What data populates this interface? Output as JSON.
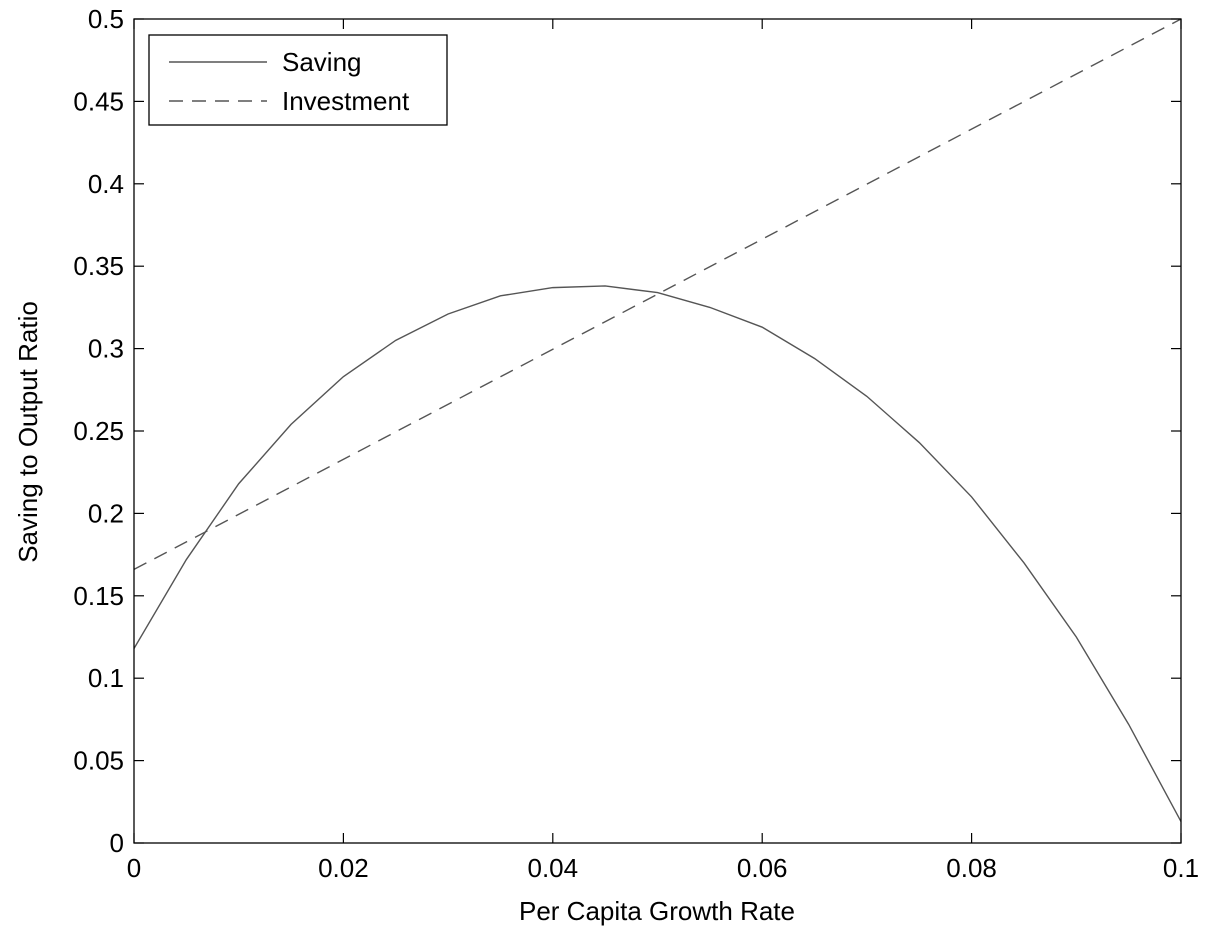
{
  "chart_data": {
    "type": "line",
    "xlabel": "Per Capita Growth Rate",
    "ylabel": "Saving to Output Ratio",
    "xlim": [
      0,
      0.1
    ],
    "ylim": [
      0,
      0.5
    ],
    "x_ticks": [
      "0",
      "0.02",
      "0.04",
      "0.06",
      "0.08",
      "0.1"
    ],
    "y_ticks": [
      "0",
      "0.05",
      "0.1",
      "0.15",
      "0.2",
      "0.25",
      "0.3",
      "0.35",
      "0.4",
      "0.45",
      "0.5"
    ],
    "x_tick_values": [
      0,
      0.02,
      0.04,
      0.06,
      0.08,
      0.1
    ],
    "y_tick_values": [
      0,
      0.05,
      0.1,
      0.15,
      0.2,
      0.25,
      0.3,
      0.35,
      0.4,
      0.45,
      0.5
    ],
    "grid": false,
    "legend_position": "top-left",
    "series": [
      {
        "name": "Saving",
        "style": "solid",
        "color": "#555555",
        "x": [
          0,
          0.005,
          0.01,
          0.015,
          0.02,
          0.025,
          0.03,
          0.035,
          0.04,
          0.045,
          0.05,
          0.055,
          0.06,
          0.065,
          0.07,
          0.075,
          0.08,
          0.085,
          0.09,
          0.095,
          0.1
        ],
        "y": [
          0.118,
          0.172,
          0.218,
          0.254,
          0.283,
          0.305,
          0.321,
          0.332,
          0.337,
          0.338,
          0.334,
          0.325,
          0.313,
          0.294,
          0.271,
          0.243,
          0.21,
          0.17,
          0.125,
          0.072,
          0.013
        ]
      },
      {
        "name": "Investment",
        "style": "dashed",
        "color": "#555555",
        "x": [
          0,
          0.1
        ],
        "y": [
          0.166,
          0.5
        ]
      }
    ]
  }
}
